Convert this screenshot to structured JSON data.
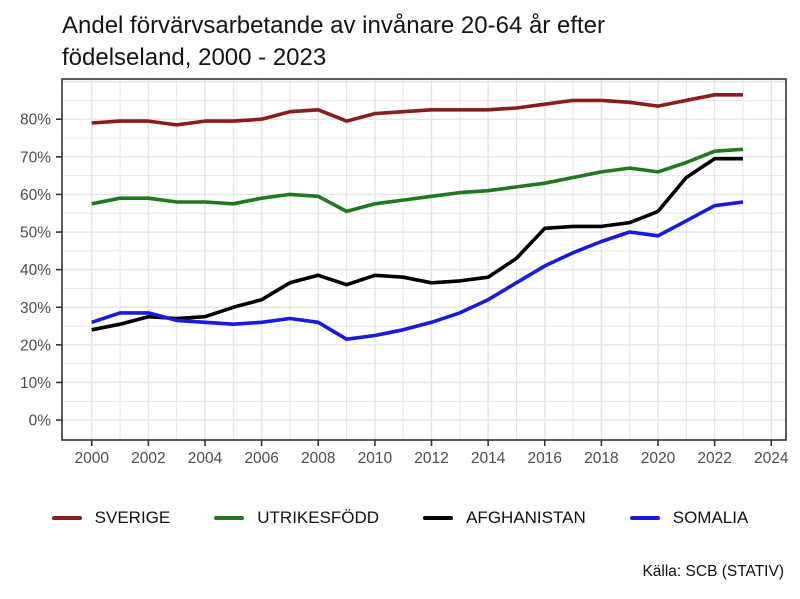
{
  "chart_data": {
    "type": "line",
    "title": "Andel förvärvsarbetande av invånare 20-64 år efter födelseland, 2000 - 2023",
    "source": "Källa: SCB (STATIV)",
    "xlabel": "",
    "ylabel": "",
    "legend_position": "bottom",
    "grid": "major and minor, light gray, on",
    "x": [
      2000,
      2001,
      2002,
      2003,
      2004,
      2005,
      2006,
      2007,
      2008,
      2009,
      2010,
      2011,
      2012,
      2013,
      2014,
      2015,
      2016,
      2017,
      2018,
      2019,
      2020,
      2021,
      2022,
      2023
    ],
    "x_ticks": [
      2000,
      2002,
      2004,
      2006,
      2008,
      2010,
      2012,
      2014,
      2016,
      2018,
      2020,
      2022,
      2024
    ],
    "x_grid_minor": [
      2001,
      2003,
      2005,
      2007,
      2009,
      2011,
      2013,
      2015,
      2017,
      2019,
      2021,
      2023
    ],
    "y_ticks": [
      0,
      10,
      20,
      30,
      40,
      50,
      60,
      70,
      80
    ],
    "y_tick_suffix": "%",
    "y_grid_major": [
      0,
      10,
      20,
      30,
      40,
      50,
      60,
      70,
      80,
      90
    ],
    "y_grid_minor": [
      5,
      15,
      25,
      35,
      45,
      55,
      65,
      75,
      85
    ],
    "xlim": [
      1998.95,
      2024.52
    ],
    "ylim": [
      -5.3,
      90.7
    ],
    "series": [
      {
        "name": "SVERIGE",
        "color": "#8B1C1C",
        "values": [
          79,
          79.5,
          79.5,
          78.5,
          79.5,
          79.5,
          80,
          82,
          82.5,
          79.5,
          81.5,
          82,
          82.5,
          82.5,
          82.5,
          83,
          84,
          85,
          85,
          84.5,
          83.5,
          85,
          86.5,
          86.5
        ]
      },
      {
        "name": "UTRIKESFÖDD",
        "color": "#1F7A1F",
        "values": [
          57.5,
          59,
          59,
          58,
          58,
          57.5,
          59,
          60,
          59.5,
          55.5,
          57.5,
          58.5,
          59.5,
          60.5,
          61,
          62,
          63,
          64.5,
          66,
          67,
          66,
          68.5,
          71.5,
          72
        ]
      },
      {
        "name": "AFGHANISTAN",
        "color": "#000000",
        "values": [
          24,
          25.5,
          27.5,
          27,
          27.5,
          30,
          32,
          36.5,
          38.5,
          36,
          38.5,
          38,
          36.5,
          37,
          38,
          43,
          51,
          51.5,
          51.5,
          52.5,
          55.5,
          64.5,
          69.5,
          69.5
        ]
      },
      {
        "name": "SOMALIA",
        "color": "#1A1ADF",
        "values": [
          26,
          28.5,
          28.5,
          26.5,
          26,
          25.5,
          26,
          27,
          26,
          21.5,
          22.5,
          24,
          26,
          28.5,
          32,
          36.5,
          41,
          44.5,
          47.5,
          50,
          49,
          53,
          57,
          58
        ]
      }
    ],
    "style": {
      "grid_color": "#E4E4E4",
      "panel_border_color": "#333333",
      "tick_color": "#333333",
      "tick_label_color": "#4D4D4D",
      "line_width": 3.6
    }
  }
}
